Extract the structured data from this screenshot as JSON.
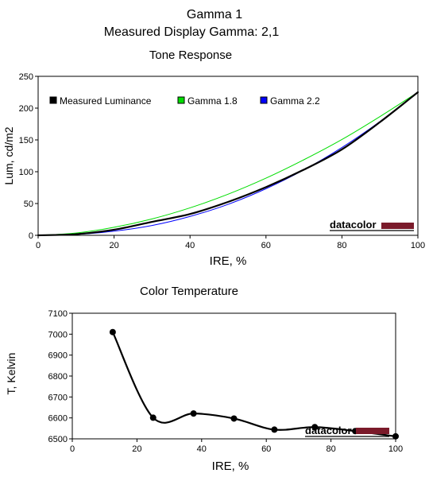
{
  "header": {
    "title": "Gamma 1",
    "subtitle": "Measured Display Gamma: 2,1"
  },
  "watermark": "datacolor",
  "colors": {
    "measured": "#000000",
    "gamma18": "#00dd00",
    "gamma22": "#0000ff",
    "brand": "#7a1a2a"
  },
  "chart_data": [
    {
      "type": "line",
      "title": "Tone Response",
      "xlabel": "IRE, %",
      "ylabel": "Lum, cd/m2",
      "xlim": [
        0,
        100
      ],
      "ylim": [
        0,
        250
      ],
      "xticks": [
        0,
        20,
        40,
        60,
        80,
        100
      ],
      "yticks": [
        0,
        50,
        100,
        150,
        200,
        250
      ],
      "grid": false,
      "legend_position": "top",
      "x": [
        0,
        10,
        20,
        30,
        40,
        50,
        60,
        70,
        80,
        90,
        100
      ],
      "series": [
        {
          "name": "Measured Luminance",
          "color": "#000000",
          "values": [
            0,
            1.8,
            8.8,
            21.2,
            33.5,
            52.5,
            75.8,
            103.3,
            135.1,
            178.0,
            225.0
          ]
        },
        {
          "name": "Gamma 1.8",
          "color": "#00dd00",
          "values": [
            0,
            3.6,
            12.6,
            25.8,
            43.2,
            64.6,
            89.9,
            118.9,
            150.7,
            186.7,
            225.0
          ]
        },
        {
          "name": "Gamma 2.2",
          "color": "#0000ff",
          "values": [
            0,
            1.4,
            6.5,
            15.5,
            29.7,
            48.7,
            73.3,
            103.0,
            138.1,
            178.9,
            225.0
          ]
        }
      ]
    },
    {
      "type": "line",
      "title": "Color Temperature",
      "xlabel": "IRE, %",
      "ylabel": "T, Kelvin",
      "xlim": [
        0,
        100
      ],
      "ylim": [
        6500,
        7100
      ],
      "xticks": [
        0,
        20,
        40,
        60,
        80,
        100
      ],
      "yticks": [
        6500,
        6600,
        6700,
        6800,
        6900,
        7000,
        7100
      ],
      "grid": false,
      "x": [
        12.5,
        25,
        37.5,
        50,
        62.5,
        75,
        87.5,
        100
      ],
      "series": [
        {
          "color": "#000000",
          "values": [
            7010,
            6601,
            6621,
            6597,
            6544,
            6556,
            6537,
            6512
          ]
        }
      ]
    }
  ]
}
